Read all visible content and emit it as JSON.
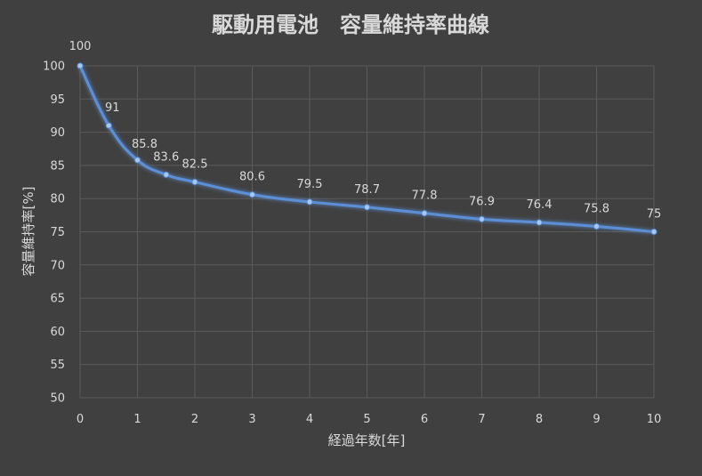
{
  "chart_data": {
    "type": "line",
    "title": "駆動用電池　容量維持率曲線",
    "xlabel": "経過年数[年]",
    "ylabel": "容量維持率[%]",
    "xlim": [
      0,
      10
    ],
    "ylim": [
      50,
      100
    ],
    "x_ticks": [
      0,
      1,
      2,
      3,
      4,
      5,
      6,
      7,
      8,
      9,
      10
    ],
    "y_ticks": [
      50,
      55,
      60,
      65,
      70,
      75,
      80,
      85,
      90,
      95,
      100
    ],
    "grid": true,
    "series": [
      {
        "x": [
          0,
          0.5,
          1,
          1.5,
          2,
          3,
          4,
          5,
          6,
          7,
          8,
          9,
          10
        ],
        "y": [
          100,
          91,
          85.8,
          83.6,
          82.5,
          80.6,
          79.5,
          78.7,
          77.8,
          76.9,
          76.4,
          75.8,
          75
        ],
        "labels": [
          "100",
          "91",
          "85.8",
          "83.6",
          "82.5",
          "80.6",
          "79.5",
          "78.7",
          "77.8",
          "76.9",
          "76.4",
          "75.8",
          "75"
        ]
      }
    ],
    "colors": {
      "background": "#404040",
      "line": "#5b8fd6",
      "marker": "#a9c8f0",
      "text": "#d9d9d9",
      "grid": "#5a5a5a"
    }
  }
}
